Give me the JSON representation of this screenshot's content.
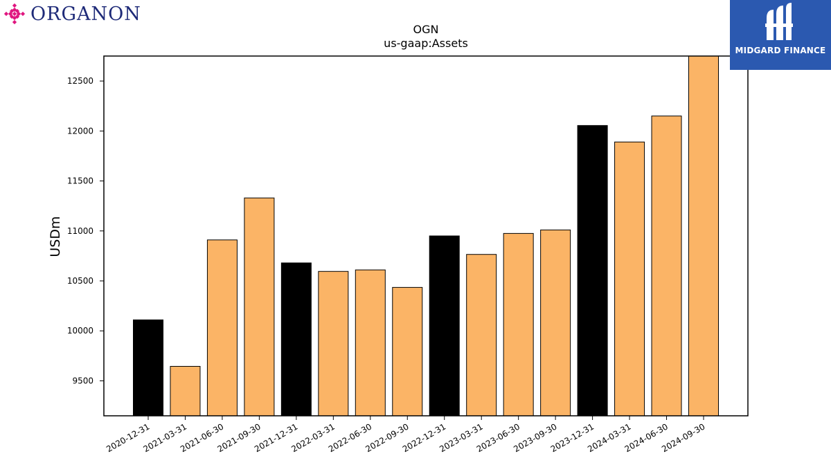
{
  "logos": {
    "organon": {
      "text": "ORGANON",
      "color": "#1e2a78",
      "accent": "#e0157f"
    },
    "midgard": {
      "text": "MIDGARD FINANCE",
      "bg": "#2b59b0"
    }
  },
  "chart_data": {
    "type": "bar",
    "title": "OGN",
    "subtitle": "us-gaap:Assets",
    "xlabel": "",
    "ylabel": "USDm",
    "ylim": [
      9150,
      12750
    ],
    "yticks": [
      9500,
      10000,
      10500,
      11000,
      11500,
      12000,
      12500
    ],
    "grid": false,
    "categories": [
      "2020-12-31",
      "2021-03-31",
      "2021-06-30",
      "2021-09-30",
      "2021-12-31",
      "2022-03-31",
      "2022-06-30",
      "2022-09-30",
      "2022-12-31",
      "2023-03-31",
      "2023-06-30",
      "2023-09-30",
      "2023-12-31",
      "2024-03-31",
      "2024-06-30",
      "2024-09-30"
    ],
    "values": [
      10110,
      9645,
      10910,
      11330,
      10680,
      10595,
      10610,
      10435,
      10950,
      10765,
      10975,
      11010,
      12055,
      11890,
      12150,
      12775
    ],
    "bar_colors": [
      "#000000",
      "#fbb466",
      "#fbb466",
      "#fbb466",
      "#000000",
      "#fbb466",
      "#fbb466",
      "#fbb466",
      "#000000",
      "#fbb466",
      "#fbb466",
      "#fbb466",
      "#000000",
      "#fbb466",
      "#fbb466",
      "#fbb466"
    ]
  }
}
